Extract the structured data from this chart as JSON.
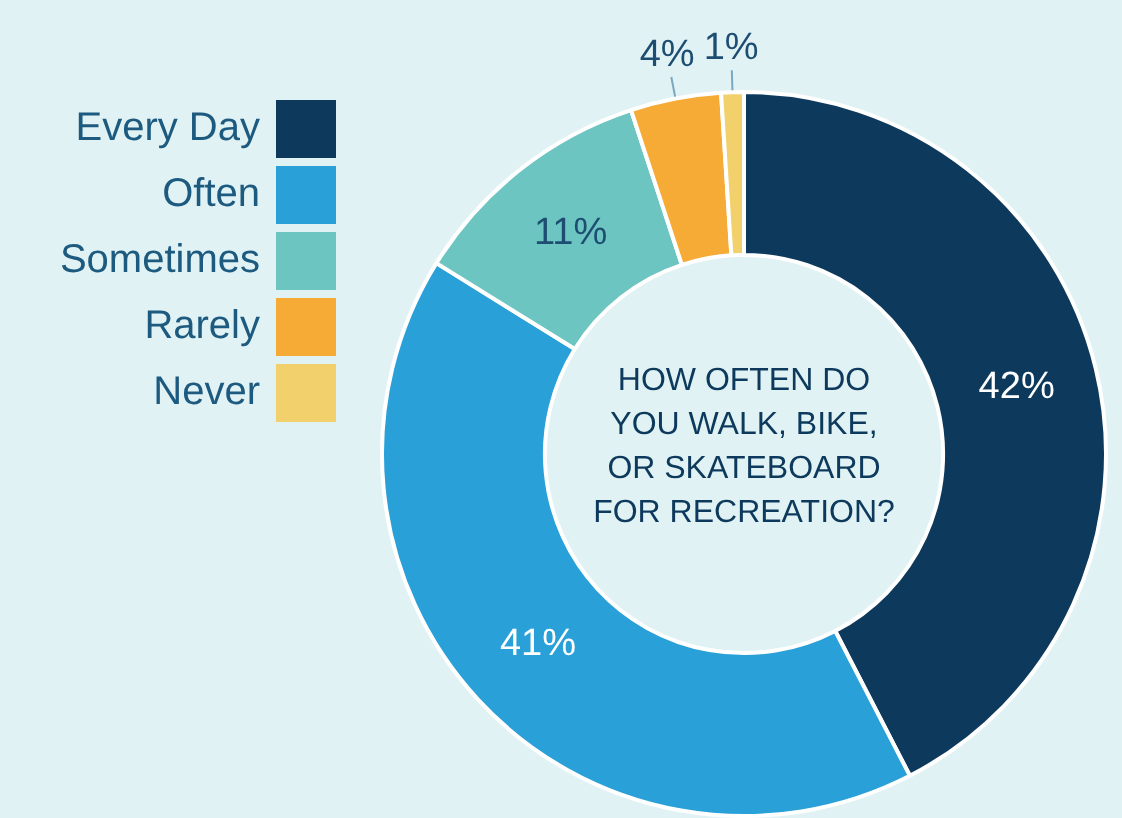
{
  "chart_data": {
    "type": "donut",
    "title": "HOW OFTEN DO YOU WALK, BIKE, OR SKATEBOARD FOR RECREATION?",
    "categories": [
      "Every Day",
      "Often",
      "Sometimes",
      "Rarely",
      "Never"
    ],
    "values": [
      42,
      41,
      11,
      4,
      1
    ],
    "colors": [
      "#0d3a5c",
      "#29a0d8",
      "#6cc5c0",
      "#f7ab37",
      "#f2d06b"
    ],
    "value_labels": [
      "42%",
      "41%",
      "11%",
      "4%",
      "1%"
    ],
    "legend": "top left"
  }
}
